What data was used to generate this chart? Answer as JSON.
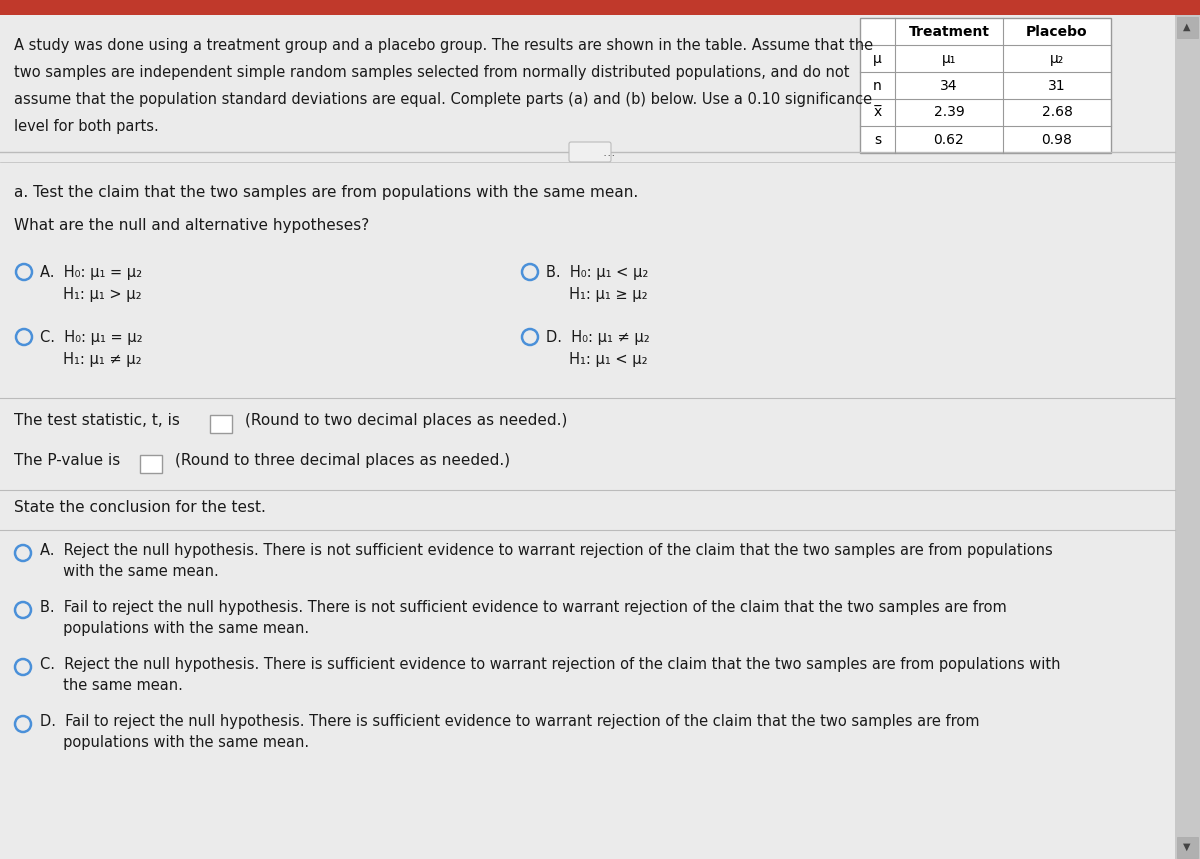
{
  "bg_top_red": "#c0392b",
  "bg_main": "#e8e8e8",
  "bg_panel": "#e8e8e8",
  "scrollbar_bg": "#d0d0d0",
  "scrollbar_thumb": "#b0b0b0",
  "white": "#ffffff",
  "table_border": "#999999",
  "radio_color": "#4a90d9",
  "text_color": "#1a1a1a",
  "separator_color": "#aaaaaa",
  "intro_text_line1": "A study was done using a treatment group and a placebo group. The results are shown in the table. Assume that the",
  "intro_text_line2": "two samples are independent simple random samples selected from normally distributed populations, and do not",
  "intro_text_line3": "assume that the population standard deviations are equal. Complete parts (a) and (b) below. Use a 0.10 significance",
  "intro_text_line4": "level for both parts.",
  "table_col1": "Treatment",
  "table_col2": "Placebo",
  "row_mu": [
    "μ",
    "μ₁",
    "μ₂"
  ],
  "row_n": [
    "n",
    "34",
    "31"
  ],
  "row_x": [
    "x̅",
    "2.39",
    "2.68"
  ],
  "row_s": [
    "s",
    "0.62",
    "0.98"
  ],
  "part_a": "a. Test the claim that the two samples are from populations with the same mean.",
  "hyp_q": "What are the null and alternative hypotheses?",
  "optA1": "H₀: μ₁ = μ₂",
  "optA2": "H₁: μ₁ > μ₂",
  "optB1": "H₀: μ₁ < μ₂",
  "optB2": "H₁: μ₁ ≥ μ₂",
  "optC1": "H₀: μ₁ = μ₂",
  "optC2": "H₁: μ₁ ≠ μ₂",
  "optD1": "H₀: μ₁ ≠ μ₂",
  "optD2": "H₁: μ₁ < μ₂",
  "test_stat_pre": "The test statistic, t, is",
  "test_stat_post": "(Round to two decimal places as needed.)",
  "pval_pre": "The P-value is",
  "pval_post": "(Round to three decimal places as needed.)",
  "conclusion_hdr": "State the conclusion for the test.",
  "conclA1": "Reject the null hypothesis. There is not sufficient evidence to warrant rejection of the claim that the two samples are from populations",
  "conclA2": "with the same mean.",
  "conclB1": "Fail to reject the null hypothesis. There is not sufficient evidence to warrant rejection of the claim that the two samples are from",
  "conclB2": "populations with the same mean.",
  "conclC1": "Reject the null hypothesis. There is sufficient evidence to warrant rejection of the claim that the two samples are from populations with",
  "conclC2": "the same mean.",
  "conclD1": "Fail to reject the null hypothesis. There is sufficient evidence to warrant rejection of the claim that the two samples are from",
  "conclD2": "populations with the same mean."
}
